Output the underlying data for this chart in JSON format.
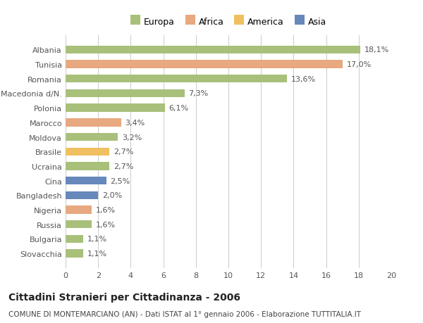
{
  "countries": [
    "Slovacchia",
    "Bulgaria",
    "Russia",
    "Nigeria",
    "Bangladesh",
    "Cina",
    "Ucraina",
    "Brasile",
    "Moldova",
    "Marocco",
    "Polonia",
    "Macedonia d/N.",
    "Romania",
    "Tunisia",
    "Albania"
  ],
  "values": [
    1.1,
    1.1,
    1.6,
    1.6,
    2.0,
    2.5,
    2.7,
    2.7,
    3.2,
    3.4,
    6.1,
    7.3,
    13.6,
    17.0,
    18.1
  ],
  "labels": [
    "1,1%",
    "1,1%",
    "1,6%",
    "1,6%",
    "2,0%",
    "2,5%",
    "2,7%",
    "2,7%",
    "3,2%",
    "3,4%",
    "6,1%",
    "7,3%",
    "13,6%",
    "17,0%",
    "18,1%"
  ],
  "continents": [
    "Europa",
    "Europa",
    "Europa",
    "Africa",
    "Asia",
    "Asia",
    "Europa",
    "America",
    "Europa",
    "Africa",
    "Europa",
    "Europa",
    "Europa",
    "Africa",
    "Europa"
  ],
  "colors": {
    "Europa": "#a8c07a",
    "Africa": "#e8a880",
    "America": "#f0c060",
    "Asia": "#6688bb"
  },
  "legend_items": [
    "Europa",
    "Africa",
    "America",
    "Asia"
  ],
  "title": "Cittadini Stranieri per Cittadinanza - 2006",
  "subtitle": "COMUNE DI MONTEMARCIANO (AN) - Dati ISTAT al 1° gennaio 2006 - Elaborazione TUTTITALIA.IT",
  "xlim": [
    0,
    20
  ],
  "xticks": [
    0,
    2,
    4,
    6,
    8,
    10,
    12,
    14,
    16,
    18,
    20
  ],
  "background_color": "#ffffff",
  "grid_color": "#cccccc",
  "bar_height": 0.55,
  "label_fontsize": 8.0,
  "tick_fontsize": 8.0,
  "title_fontsize": 10.0,
  "subtitle_fontsize": 7.5,
  "legend_fontsize": 9.0
}
